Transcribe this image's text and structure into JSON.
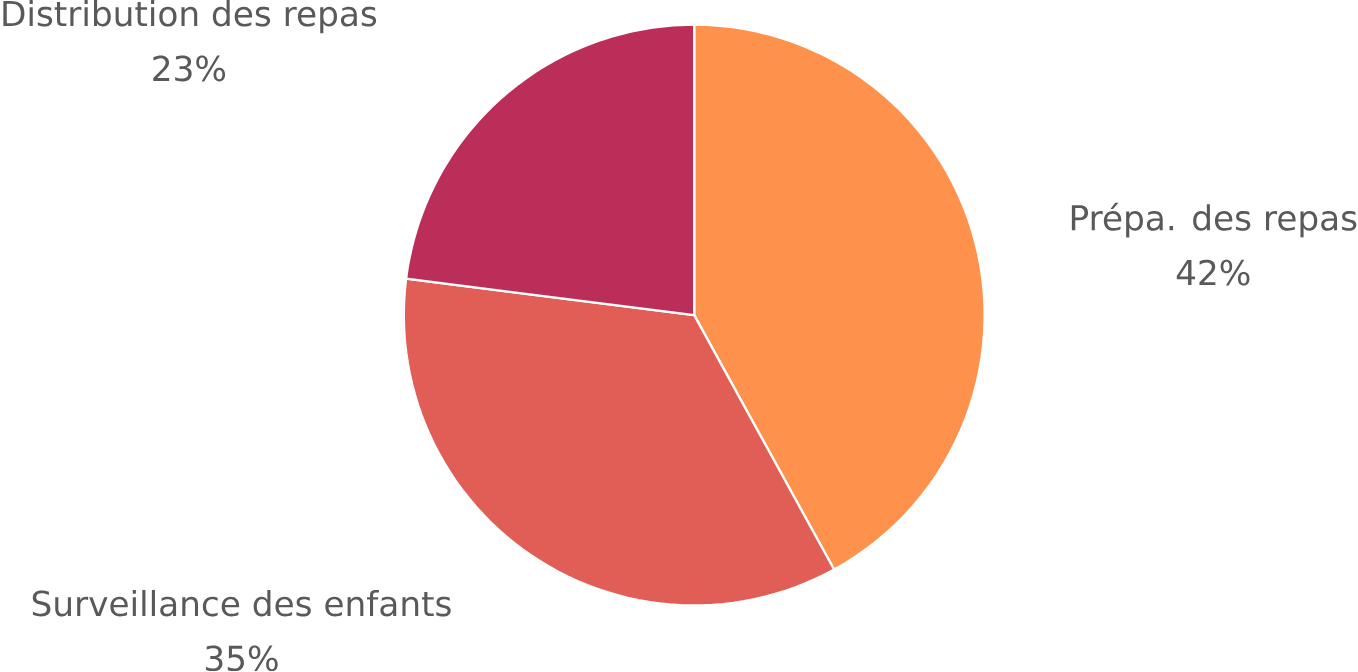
{
  "chart_data": {
    "type": "pie",
    "categories": [
      "Prépa. des repas",
      "Surveillance des enfants",
      "Distribution des repas"
    ],
    "values": [
      42,
      35,
      23
    ],
    "colors": [
      "#fe914c",
      "#e15e56",
      "#bc2e5a"
    ],
    "value_labels": [
      "42%",
      "35%",
      "23%"
    ]
  }
}
